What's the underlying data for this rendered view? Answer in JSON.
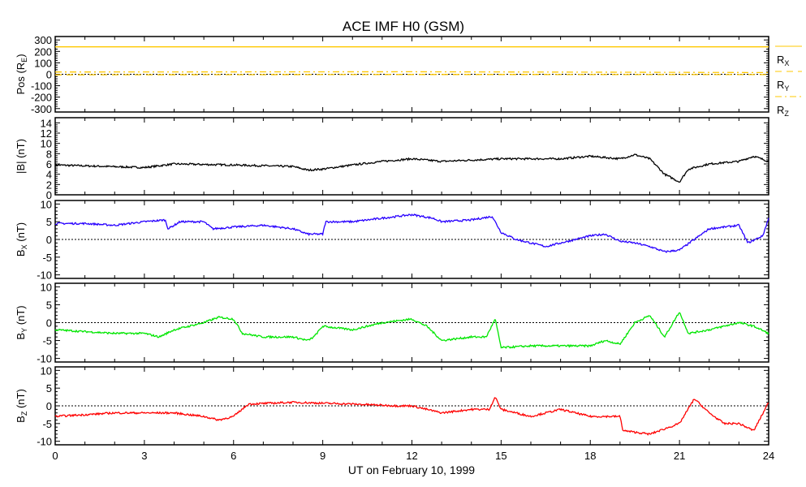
{
  "chart_data": {
    "type": "line",
    "title": "ACE IMF H0 (GSM)",
    "xlabel": "UT on February 10, 1999",
    "xlim": [
      0,
      24
    ],
    "xticks": [
      "0",
      "3",
      "6",
      "9",
      "12",
      "15",
      "18",
      "21",
      "24"
    ],
    "panels": [
      {
        "name": "position",
        "ylabel": [
          "Pos (R",
          "E",
          ")"
        ],
        "ylim": [
          -330,
          330
        ],
        "yticks": [
          -300,
          -200,
          -100,
          0,
          100,
          200,
          300
        ],
        "zero_line": true,
        "color": "#ffc800",
        "series": [
          {
            "name": "RX",
            "label": [
              "R",
              "X"
            ],
            "dash": "solid",
            "points": [
              [
                0,
                240
              ],
              [
                24,
                240
              ]
            ]
          },
          {
            "name": "RY",
            "label": [
              "R",
              "Y"
            ],
            "dash": "dashed",
            "points": [
              [
                0,
                -5
              ],
              [
                6,
                -4
              ],
              [
                12,
                -2
              ],
              [
                18,
                -6
              ],
              [
                24,
                -3
              ]
            ]
          },
          {
            "name": "RZ",
            "label": [
              "R",
              "Z"
            ],
            "dash": "dashdot",
            "points": [
              [
                0,
                20
              ],
              [
                6,
                22
              ],
              [
                12,
                22
              ],
              [
                15.5,
                20
              ],
              [
                18,
                16
              ],
              [
                24,
                15
              ]
            ]
          }
        ]
      },
      {
        "name": "btotal",
        "ylabel": [
          "|B| (nT)",
          "",
          ""
        ],
        "ylim": [
          0,
          15
        ],
        "yticks": [
          0,
          2,
          4,
          6,
          8,
          10,
          12,
          14
        ],
        "zero_line": false,
        "color": "#000000",
        "series": [
          {
            "name": "|B|",
            "points": [
              [
                0,
                5.8
              ],
              [
                3,
                5.3
              ],
              [
                4,
                6
              ],
              [
                6,
                5.8
              ],
              [
                8,
                5.5
              ],
              [
                8.5,
                4.8
              ],
              [
                9,
                5
              ],
              [
                10,
                5.8
              ],
              [
                11,
                6.5
              ],
              [
                12,
                7
              ],
              [
                13,
                6.5
              ],
              [
                15,
                7
              ],
              [
                17,
                7
              ],
              [
                18,
                7.5
              ],
              [
                19,
                7
              ],
              [
                19.5,
                7.8
              ],
              [
                20,
                7
              ],
              [
                20.5,
                4
              ],
              [
                21,
                2.5
              ],
              [
                21.3,
                5
              ],
              [
                22,
                6
              ],
              [
                23,
                6.5
              ],
              [
                23.5,
                7.5
              ],
              [
                24,
                6.5
              ]
            ]
          }
        ]
      },
      {
        "name": "bx",
        "ylabel": [
          "B",
          "X",
          " (nT)"
        ],
        "ylim": [
          -11,
          11
        ],
        "yticks": [
          -10,
          -5,
          0,
          5,
          10
        ],
        "zero_line": true,
        "color": "#2800ff",
        "series": [
          {
            "name": "Bx",
            "points": [
              [
                0,
                4.5
              ],
              [
                1,
                4.5
              ],
              [
                2,
                4
              ],
              [
                3,
                5
              ],
              [
                3.7,
                5.5
              ],
              [
                3.8,
                3
              ],
              [
                4.2,
                5
              ],
              [
                5,
                5
              ],
              [
                5.3,
                3
              ],
              [
                6,
                3.5
              ],
              [
                7,
                4
              ],
              [
                8,
                3
              ],
              [
                8.5,
                1.5
              ],
              [
                9,
                1.5
              ],
              [
                9.1,
                5
              ],
              [
                10,
                5
              ],
              [
                11,
                6
              ],
              [
                12,
                7
              ],
              [
                12.7,
                6
              ],
              [
                13,
                5
              ],
              [
                14,
                5.5
              ],
              [
                14.7,
                6.5
              ],
              [
                15,
                2
              ],
              [
                15.5,
                0
              ],
              [
                16,
                -1
              ],
              [
                16.5,
                -2
              ],
              [
                17,
                -1
              ],
              [
                18,
                1
              ],
              [
                18.5,
                1.5
              ],
              [
                19,
                -0.5
              ],
              [
                19.5,
                -1
              ],
              [
                20,
                -2
              ],
              [
                20.5,
                -3.5
              ],
              [
                21,
                -3
              ],
              [
                21.5,
                0
              ],
              [
                22,
                3
              ],
              [
                23,
                4
              ],
              [
                23.3,
                -1
              ],
              [
                23.8,
                1
              ],
              [
                24,
                6
              ]
            ]
          }
        ]
      },
      {
        "name": "by",
        "ylabel": [
          "B",
          "Y",
          " (nT)"
        ],
        "ylim": [
          -11,
          11
        ],
        "yticks": [
          -10,
          -5,
          0,
          5,
          10
        ],
        "zero_line": true,
        "color": "#00e600",
        "series": [
          {
            "name": "By",
            "points": [
              [
                0,
                -2
              ],
              [
                2,
                -3
              ],
              [
                3,
                -3
              ],
              [
                3.5,
                -4
              ],
              [
                4,
                -2
              ],
              [
                5,
                0
              ],
              [
                5.5,
                1.5
              ],
              [
                6,
                1
              ],
              [
                6.3,
                -3
              ],
              [
                7,
                -4
              ],
              [
                8,
                -4
              ],
              [
                8.5,
                -5
              ],
              [
                8.7,
                -4
              ],
              [
                9,
                -1
              ],
              [
                10,
                -2
              ],
              [
                11,
                0
              ],
              [
                12,
                1
              ],
              [
                12.5,
                -1
              ],
              [
                13,
                -5
              ],
              [
                14,
                -4
              ],
              [
                14.5,
                -4
              ],
              [
                14.8,
                1
              ],
              [
                15,
                -7
              ],
              [
                16,
                -6.5
              ],
              [
                17,
                -6.5
              ],
              [
                18,
                -6.5
              ],
              [
                18.5,
                -5
              ],
              [
                19,
                -6
              ],
              [
                19.5,
                0
              ],
              [
                20,
                2
              ],
              [
                20.5,
                -4
              ],
              [
                21,
                3
              ],
              [
                21.3,
                -3
              ],
              [
                22,
                -2
              ],
              [
                23,
                0
              ],
              [
                23.5,
                -1
              ],
              [
                24,
                -3
              ]
            ]
          }
        ]
      },
      {
        "name": "bz",
        "ylabel": [
          "B",
          "Z",
          " (nT)"
        ],
        "ylim": [
          -11,
          11
        ],
        "yticks": [
          -10,
          -5,
          0,
          5,
          10
        ],
        "zero_line": true,
        "color": "#ff0000",
        "series": [
          {
            "name": "Bz",
            "points": [
              [
                0,
                -3
              ],
              [
                2,
                -2
              ],
              [
                4,
                -2
              ],
              [
                5,
                -3
              ],
              [
                5.5,
                -4
              ],
              [
                6,
                -3
              ],
              [
                6.5,
                0.5
              ],
              [
                8,
                1
              ],
              [
                10,
                0.5
              ],
              [
                11.5,
                0
              ],
              [
                12,
                0
              ],
              [
                13,
                -2
              ],
              [
                14,
                -1
              ],
              [
                14.6,
                -1
              ],
              [
                14.8,
                2.5
              ],
              [
                15,
                -1
              ],
              [
                16,
                -3
              ],
              [
                17,
                -1
              ],
              [
                18,
                -3
              ],
              [
                19,
                -3
              ],
              [
                19.1,
                -7
              ],
              [
                20,
                -8
              ],
              [
                21,
                -5
              ],
              [
                21.5,
                2
              ],
              [
                22,
                -2
              ],
              [
                22.5,
                -5
              ],
              [
                23,
                -5
              ],
              [
                23.5,
                -7
              ],
              [
                24,
                1
              ]
            ]
          }
        ]
      }
    ]
  }
}
